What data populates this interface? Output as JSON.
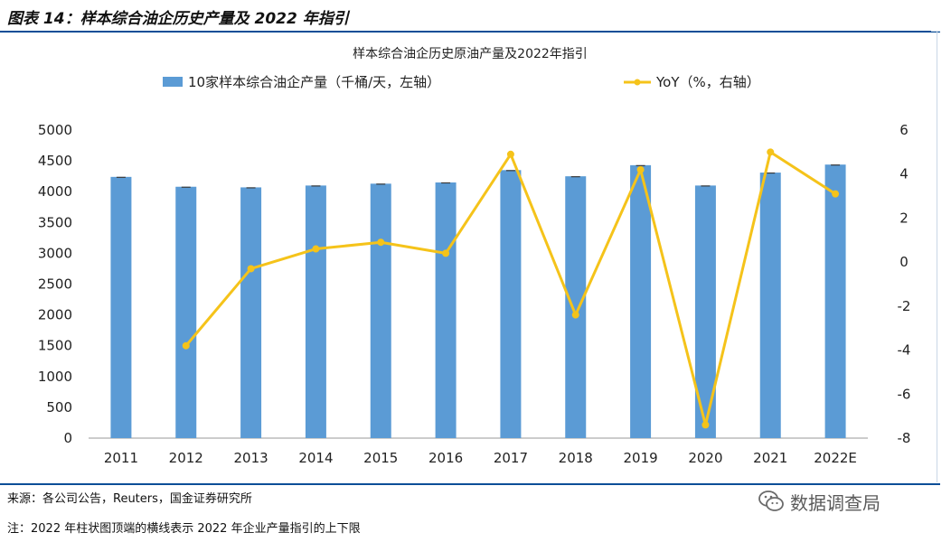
{
  "figure": {
    "caption": "图表 14：样本综合油企历史产量及 2022 年指引",
    "source": "来源：各公司公告，Reuters，国金证券研究所",
    "note": "注：2022 年柱状图顶端的横线表示 2022 年企业产量指引的上下限",
    "watermark": "数据调查局",
    "watermark_icon": "wechat-icon"
  },
  "chart_data": {
    "type": "bar",
    "title": "样本综合油企历史原油产量及2022年指引",
    "categories": [
      "2011",
      "2012",
      "2013",
      "2014",
      "2015",
      "2016",
      "2017",
      "2018",
      "2019",
      "2020",
      "2021",
      "2022E"
    ],
    "series": [
      {
        "name": "10家样本综合油企产量（千桶/天，左轴）",
        "type": "bar",
        "axis": "left",
        "color": "#5b9bd5",
        "values": [
          4240,
          4080,
          4070,
          4100,
          4130,
          4150,
          4350,
          4250,
          4430,
          4100,
          4310,
          4440
        ]
      },
      {
        "name": "YoY（%，右轴）",
        "type": "line",
        "axis": "right",
        "color": "#f5c31a",
        "values": [
          null,
          -3.8,
          -0.3,
          0.6,
          0.9,
          0.4,
          4.9,
          -2.4,
          4.2,
          -7.4,
          5.0,
          3.1
        ]
      }
    ],
    "y_left": {
      "min": 0,
      "max": 5000,
      "step": 500,
      "ticks": [
        "0",
        "500",
        "1000",
        "1500",
        "2000",
        "2500",
        "3000",
        "3500",
        "4000",
        "4500",
        "5000"
      ]
    },
    "y_right": {
      "min": -8,
      "max": 6,
      "step": 2,
      "ticks": [
        "-8",
        "-6",
        "-4",
        "-2",
        "0",
        "2",
        "4",
        "6"
      ]
    },
    "legend_position": "top",
    "grid": false
  }
}
